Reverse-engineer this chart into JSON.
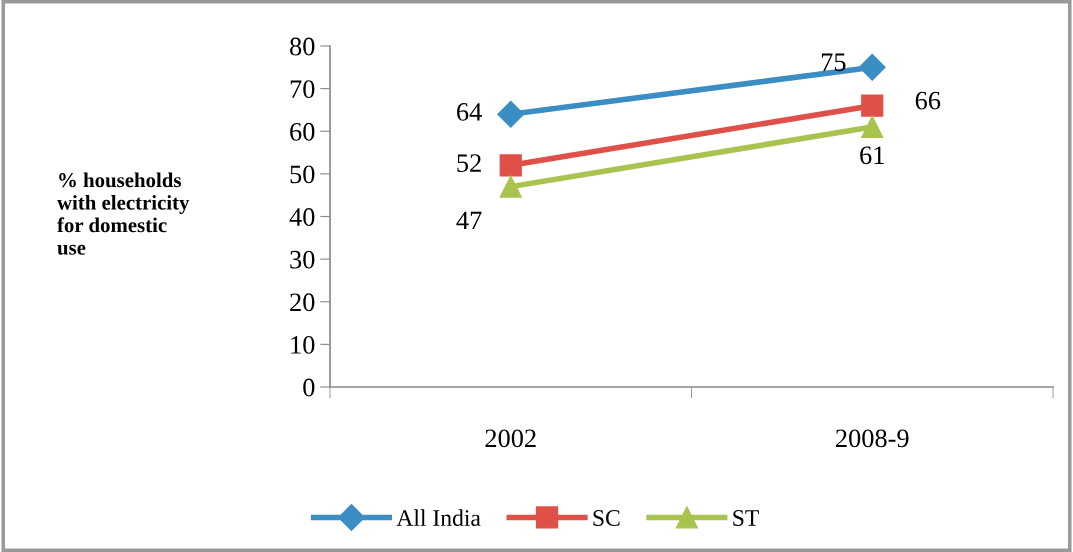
{
  "chart_data": {
    "type": "line",
    "ylabel": "% households\nwith electricity\nfor domestic\nuse",
    "categories": [
      "2002",
      "2008-9"
    ],
    "series": [
      {
        "name": "All India",
        "color": "#3b8ec4",
        "marker": "diamond",
        "values": [
          64,
          75
        ]
      },
      {
        "name": "SC",
        "color": "#df5148",
        "marker": "square",
        "values": [
          52,
          66
        ]
      },
      {
        "name": "ST",
        "color": "#a9c44e",
        "marker": "triangle",
        "values": [
          47,
          61
        ]
      }
    ],
    "ylim": [
      0,
      80
    ],
    "yticks": [
      0,
      10,
      20,
      30,
      40,
      50,
      60,
      70,
      80
    ],
    "data_labels": true,
    "grid": false,
    "legend": "bottom",
    "line_style": "solid"
  }
}
